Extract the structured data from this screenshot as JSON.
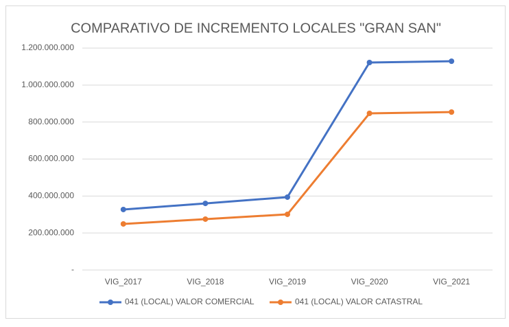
{
  "chart_data": {
    "type": "line",
    "title": "COMPARATIVO DE INCREMENTO LOCALES \"GRAN SAN\"",
    "categories": [
      "VIG_2017",
      "VIG_2018",
      "VIG_2019",
      "VIG_2020",
      "VIG_2021"
    ],
    "series": [
      {
        "name": "041 (LOCAL) VALOR COMERCIAL",
        "color": "#4472c4",
        "values": [
          327000000,
          360000000,
          394000000,
          1122000000,
          1129000000
        ]
      },
      {
        "name": "041 (LOCAL) VALOR CATASTRAL",
        "color": "#ed7d31",
        "values": [
          249000000,
          275000000,
          301000000,
          847000000,
          854000000
        ]
      }
    ],
    "ylim": [
      0,
      1200000000
    ],
    "yticks": [
      {
        "value": 0,
        "label": "-"
      },
      {
        "value": 200000000,
        "label": "200.000.000"
      },
      {
        "value": 400000000,
        "label": "400.000.000"
      },
      {
        "value": 600000000,
        "label": "600.000.000"
      },
      {
        "value": 800000000,
        "label": "800.000.000"
      },
      {
        "value": 1000000000,
        "label": "1.000.000.000"
      },
      {
        "value": 1200000000,
        "label": "1.200.000.000"
      }
    ],
    "grid": true,
    "legend": "bottom"
  }
}
